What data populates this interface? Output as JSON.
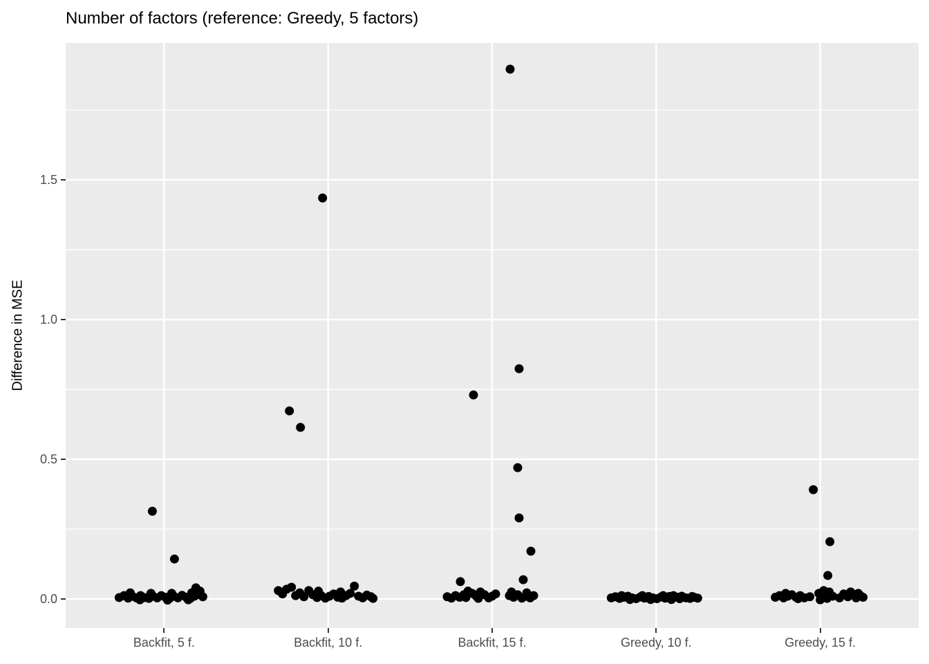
{
  "colors": {
    "page_bg": "#FFFFFF",
    "panel_bg": "#EBEBEB",
    "grid": "#FFFFFF",
    "point": "#000000",
    "title_text": "#000000",
    "axis_text": "#4D4D4D",
    "tick_mark": "#333333"
  },
  "chart_data": {
    "type": "scatter",
    "variant": "jittered-strip-plot",
    "title": "Number of factors (reference: Greedy, 5 factors)",
    "xlabel": "",
    "ylabel": "Difference in MSE",
    "legend": "none",
    "grid": "white major+minor horizontal lines, white major vertical line at each category center",
    "categories": [
      "Backfit, 5 f.",
      "Backfit, 10 f.",
      "Backfit, 15 f.",
      "Greedy, 10 f.",
      "Greedy, 15 f."
    ],
    "ylim": [
      -0.104,
      1.99
    ],
    "yticks": [
      0.0,
      0.5,
      1.0,
      1.5
    ],
    "ytick_labels": [
      "0.0",
      "0.5",
      "1.0",
      "1.5"
    ],
    "yticks_minor": [
      0.25,
      0.75,
      1.25,
      1.75
    ],
    "point_radius_px": 6.5,
    "series": [
      {
        "name": "Backfit, 5 f.",
        "points": [
          [
            -17,
            0.314
          ],
          [
            15,
            0.143
          ],
          [
            -65,
            0.005
          ],
          [
            -58,
            0.012
          ],
          [
            -52,
            0.003
          ],
          [
            -46,
            0.01
          ],
          [
            -40,
            0.004
          ],
          [
            -34,
            0.012
          ],
          [
            -28,
            0.005
          ],
          [
            -22,
            0.002
          ],
          [
            -16,
            0.01
          ],
          [
            -10,
            0.004
          ],
          [
            -4,
            0.012
          ],
          [
            2,
            0.006
          ],
          [
            8,
            0.002
          ],
          [
            14,
            0.01
          ],
          [
            20,
            0.004
          ],
          [
            26,
            0.013
          ],
          [
            32,
            0.006
          ],
          [
            38,
            0.002
          ],
          [
            44,
            0.01
          ],
          [
            50,
            0.016
          ],
          [
            46,
            0.04
          ],
          [
            52,
            0.028
          ],
          [
            56,
            0.008
          ],
          [
            40,
            0.022
          ],
          [
            -49,
            0.022
          ],
          [
            -19,
            0.02
          ],
          [
            11,
            0.02
          ],
          [
            -35,
            -0.003
          ],
          [
            5,
            -0.004
          ],
          [
            35,
            -0.003
          ]
        ]
      },
      {
        "name": "Backfit, 10 f.",
        "points": [
          [
            -8,
            1.435
          ],
          [
            -56,
            0.673
          ],
          [
            -40,
            0.614
          ],
          [
            -72,
            0.03
          ],
          [
            -66,
            0.018
          ],
          [
            -60,
            0.035
          ],
          [
            -53,
            0.042
          ],
          [
            -47,
            0.012
          ],
          [
            -41,
            0.022
          ],
          [
            -35,
            0.008
          ],
          [
            -28,
            0.03
          ],
          [
            -22,
            0.015
          ],
          [
            -16,
            0.005
          ],
          [
            -10,
            0.012
          ],
          [
            -4,
            0.003
          ],
          [
            2,
            0.01
          ],
          [
            8,
            0.018
          ],
          [
            14,
            0.006
          ],
          [
            20,
            0.003
          ],
          [
            26,
            0.012
          ],
          [
            32,
            0.02
          ],
          [
            38,
            0.046
          ],
          [
            44,
            0.01
          ],
          [
            50,
            0.004
          ],
          [
            56,
            0.014
          ],
          [
            62,
            0.008
          ],
          [
            65,
            0.002
          ],
          [
            -14,
            0.028
          ],
          [
            18,
            0.025
          ]
        ]
      },
      {
        "name": "Backfit, 15 f.",
        "points": [
          [
            26,
            1.896
          ],
          [
            39,
            0.824
          ],
          [
            -27,
            0.73
          ],
          [
            37,
            0.47
          ],
          [
            39,
            0.29
          ],
          [
            56,
            0.171
          ],
          [
            45,
            0.069
          ],
          [
            -46,
            0.062
          ],
          [
            -65,
            0.008
          ],
          [
            -59,
            0.003
          ],
          [
            -53,
            0.012
          ],
          [
            -47,
            0.006
          ],
          [
            -41,
            0.015
          ],
          [
            -35,
            0.028
          ],
          [
            -29,
            0.02
          ],
          [
            -23,
            0.01
          ],
          [
            -17,
            0.025
          ],
          [
            -11,
            0.015
          ],
          [
            -5,
            0.004
          ],
          [
            0,
            0.01
          ],
          [
            5,
            0.018
          ],
          [
            -38,
            0.005
          ],
          [
            -20,
            0.002
          ],
          [
            25,
            0.012
          ],
          [
            31,
            0.006
          ],
          [
            37,
            0.015
          ],
          [
            43,
            0.003
          ],
          [
            49,
            0.01
          ],
          [
            55,
            0.004
          ],
          [
            60,
            0.012
          ],
          [
            28,
            0.025
          ],
          [
            50,
            0.022
          ]
        ]
      },
      {
        "name": "Greedy, 10 f.",
        "points": [
          [
            -65,
            0.004
          ],
          [
            -59,
            0.008
          ],
          [
            -53,
            0.002
          ],
          [
            -47,
            0.006
          ],
          [
            -41,
            0.01
          ],
          [
            -35,
            0.004
          ],
          [
            -29,
            0.001
          ],
          [
            -23,
            0.007
          ],
          [
            -17,
            0.003
          ],
          [
            -11,
            0.009
          ],
          [
            -5,
            0.004
          ],
          [
            1,
            0.001
          ],
          [
            7,
            0.007
          ],
          [
            13,
            0.003
          ],
          [
            19,
            0.009
          ],
          [
            25,
            0.012
          ],
          [
            31,
            0.006
          ],
          [
            37,
            0.01
          ],
          [
            43,
            0.004
          ],
          [
            49,
            0.002
          ],
          [
            55,
            0.006
          ],
          [
            60,
            0.003
          ],
          [
            -50,
            0.012
          ],
          [
            -20,
            0.012
          ],
          [
            10,
            0.012
          ],
          [
            34,
            0.001
          ],
          [
            -8,
            -0.002
          ],
          [
            22,
            -0.002
          ],
          [
            -38,
            -0.002
          ],
          [
            52,
            0.009
          ]
        ]
      },
      {
        "name": "Greedy, 15 f.",
        "points": [
          [
            -10,
            0.391
          ],
          [
            14,
            0.205
          ],
          [
            11,
            0.084
          ],
          [
            -65,
            0.006
          ],
          [
            -59,
            0.012
          ],
          [
            -53,
            0.004
          ],
          [
            -47,
            0.01
          ],
          [
            -41,
            0.015
          ],
          [
            -35,
            0.006
          ],
          [
            -29,
            0.012
          ],
          [
            -23,
            0.004
          ],
          [
            -2,
            0.02
          ],
          [
            3,
            0.008
          ],
          [
            8,
            0.015
          ],
          [
            13,
            0.025
          ],
          [
            5,
            0.03
          ],
          [
            10,
            0.002
          ],
          [
            34,
            0.018
          ],
          [
            40,
            0.008
          ],
          [
            46,
            0.015
          ],
          [
            52,
            0.004
          ],
          [
            58,
            0.012
          ],
          [
            62,
            0.006
          ],
          [
            28,
            0.004
          ],
          [
            -15,
            0.008
          ],
          [
            18,
            0.01
          ],
          [
            44,
            0.025
          ],
          [
            55,
            0.02
          ],
          [
            -50,
            0.02
          ],
          [
            -32,
            0.001
          ],
          [
            0,
            -0.003
          ]
        ]
      }
    ]
  }
}
